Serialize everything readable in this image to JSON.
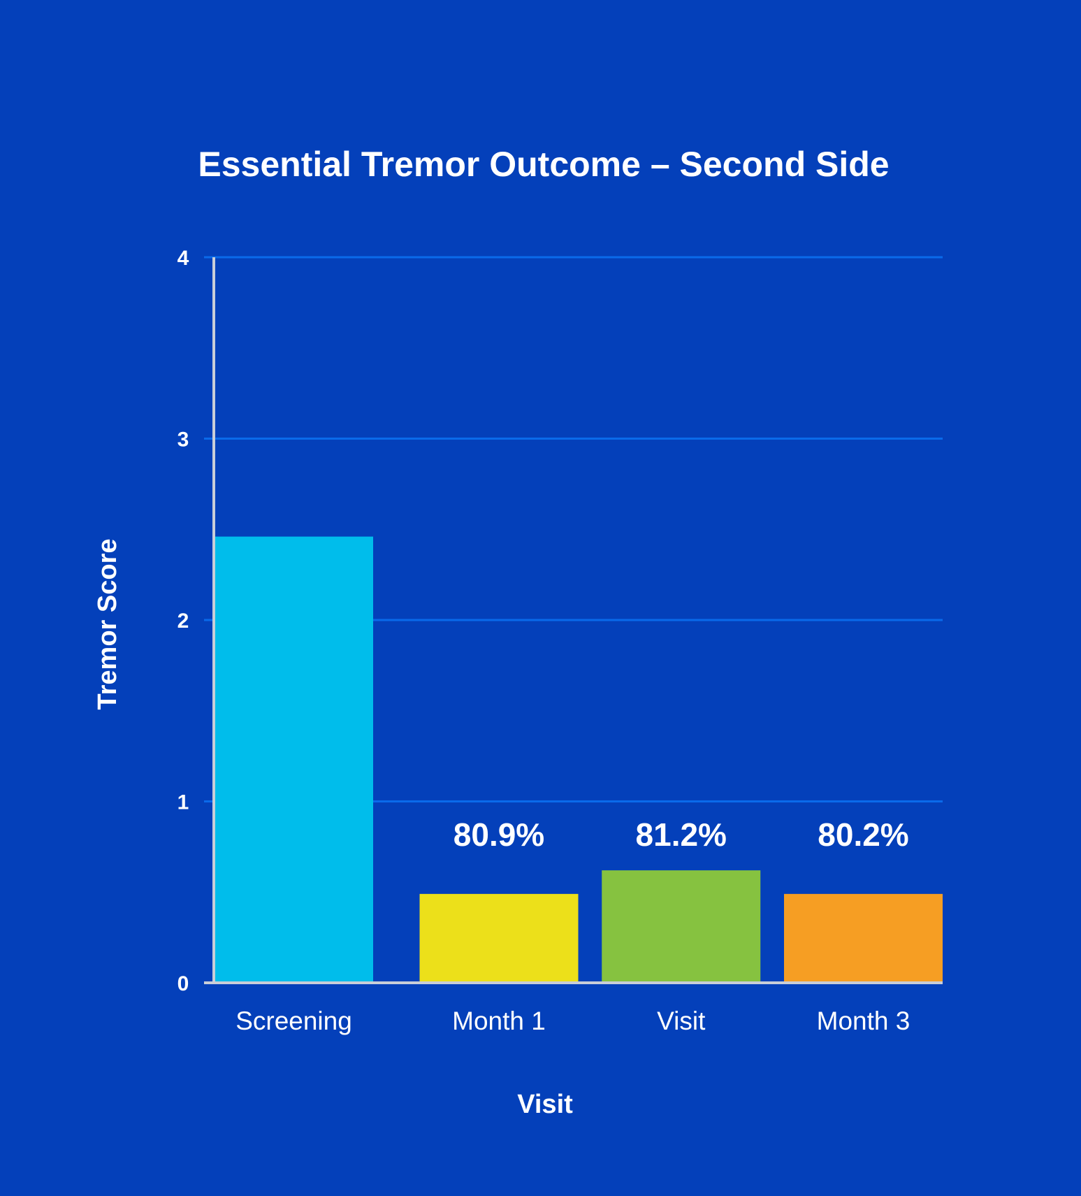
{
  "chart_data": {
    "type": "bar",
    "title": "Essential Tremor Outcome – Second Side",
    "xlabel": "Visit",
    "ylabel": "Tremor Score",
    "categories": [
      "Screening",
      "Month 1",
      "Visit",
      "Month 3"
    ],
    "values": [
      2.46,
      0.49,
      0.62,
      0.49
    ],
    "data_labels": [
      "",
      "80.9%",
      "81.2%",
      "80.2%"
    ],
    "bar_colors": [
      "#00BDEB",
      "#ECE01A",
      "#86C240",
      "#F69E23"
    ],
    "ylim": [
      0,
      4
    ],
    "yticks": [
      0,
      1,
      2,
      3,
      4
    ],
    "ytick_labels": [
      "0",
      "1",
      "2",
      "3",
      "4"
    ],
    "grid": true,
    "grid_color": "#0A6AEA",
    "axis_color": "#C9CED8",
    "background": "#0440BA",
    "legend": "none"
  }
}
